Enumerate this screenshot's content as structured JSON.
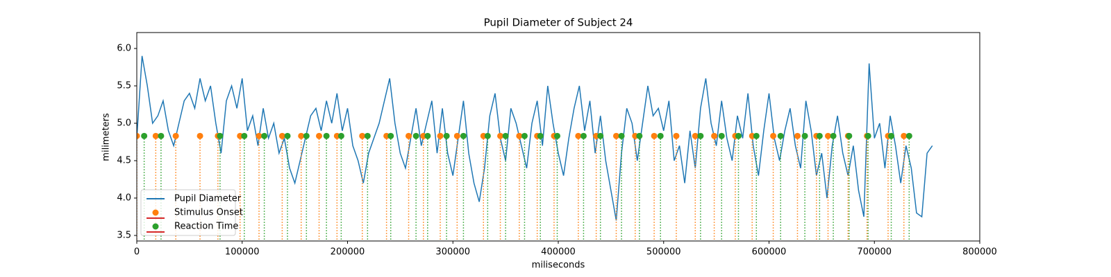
{
  "chart_data": {
    "type": "line",
    "title": "Pupil Diameter of Subject 24",
    "x_label": "miliseconds",
    "y_label": "milimeters",
    "xlim": [
      0,
      800000
    ],
    "xticks": [
      0,
      100000,
      200000,
      300000,
      400000,
      500000,
      600000,
      700000,
      800000
    ],
    "ylim": [
      3.426,
      6.213
    ],
    "yticks": [
      3.5,
      {
        "value": 4,
        "label": "4.0"
      },
      4.5,
      {
        "value": 5,
        "label": "5.0"
      },
      5.5,
      {
        "value": 6,
        "label": "6.0"
      }
    ],
    "legend": "lower left",
    "series": [
      {
        "name": "Pupil Diameter",
        "type": "line",
        "color": "#1f77b4",
        "x": [
          0,
          5000,
          10000,
          15000,
          20000,
          25000,
          30000,
          35000,
          40000,
          45000,
          50000,
          55000,
          60000,
          65000,
          70000,
          75000,
          80000,
          85000,
          90000,
          95000,
          100000,
          105000,
          110000,
          115000,
          120000,
          125000,
          130000,
          135000,
          140000,
          145000,
          150000,
          155000,
          160000,
          165000,
          170000,
          175000,
          180000,
          185000,
          190000,
          195000,
          200000,
          205000,
          210000,
          215000,
          220000,
          225000,
          230000,
          235000,
          240000,
          245000,
          250000,
          255000,
          260000,
          265000,
          270000,
          275000,
          280000,
          285000,
          290000,
          295000,
          300000,
          305000,
          310000,
          315000,
          320000,
          325000,
          330000,
          335000,
          340000,
          345000,
          350000,
          355000,
          360000,
          365000,
          370000,
          375000,
          380000,
          385000,
          390000,
          395000,
          400000,
          405000,
          410000,
          415000,
          420000,
          425000,
          430000,
          435000,
          440000,
          445000,
          450000,
          455000,
          460000,
          465000,
          470000,
          475000,
          480000,
          485000,
          490000,
          495000,
          500000,
          505000,
          510000,
          515000,
          520000,
          525000,
          530000,
          535000,
          540000,
          545000,
          550000,
          555000,
          560000,
          565000,
          570000,
          575000,
          580000,
          585000,
          590000,
          595000,
          600000,
          605000,
          610000,
          615000,
          620000,
          625000,
          630000,
          635000,
          640000,
          645000,
          650000,
          655000,
          660000,
          665000,
          670000,
          675000,
          680000,
          685000,
          690000,
          695000,
          700000,
          705000,
          710000,
          715000,
          720000,
          725000,
          730000,
          735000,
          740000,
          745000,
          750000,
          755000
        ],
        "values": [
          4.8,
          5.9,
          5.5,
          5.0,
          5.1,
          5.3,
          4.9,
          4.7,
          5.0,
          5.3,
          5.4,
          5.2,
          5.6,
          5.3,
          5.5,
          5.0,
          4.6,
          5.3,
          5.5,
          5.2,
          5.6,
          4.9,
          5.1,
          4.7,
          5.2,
          4.8,
          5.0,
          4.6,
          4.8,
          4.4,
          4.2,
          4.5,
          4.8,
          5.1,
          5.2,
          4.9,
          5.3,
          5.0,
          5.4,
          4.9,
          5.2,
          4.7,
          4.5,
          4.2,
          4.6,
          4.8,
          5.0,
          5.3,
          5.6,
          5.0,
          4.6,
          4.4,
          4.8,
          5.2,
          4.7,
          5.0,
          5.3,
          4.6,
          5.2,
          4.6,
          4.3,
          4.8,
          5.3,
          4.6,
          4.2,
          3.95,
          4.4,
          5.1,
          5.4,
          4.8,
          4.5,
          5.2,
          5.0,
          4.7,
          4.4,
          5.0,
          5.3,
          4.7,
          5.5,
          5.0,
          4.6,
          4.3,
          4.8,
          5.2,
          5.5,
          4.9,
          5.3,
          4.6,
          5.1,
          4.5,
          4.1,
          3.7,
          4.6,
          5.2,
          5.0,
          4.5,
          5.0,
          5.5,
          5.1,
          5.2,
          4.9,
          5.3,
          4.5,
          4.7,
          4.2,
          4.9,
          4.4,
          5.2,
          5.6,
          5.0,
          4.7,
          5.3,
          4.8,
          4.5,
          5.1,
          4.8,
          5.4,
          4.7,
          4.3,
          4.9,
          5.4,
          4.8,
          4.5,
          4.9,
          5.2,
          4.7,
          4.4,
          5.3,
          4.9,
          4.3,
          4.6,
          4.0,
          4.7,
          5.1,
          4.6,
          4.3,
          4.7,
          4.1,
          3.75,
          5.8,
          4.8,
          5.0,
          4.4,
          5.1,
          4.7,
          4.2,
          4.7,
          4.4,
          3.8,
          3.75,
          4.6,
          4.7
        ]
      },
      {
        "name": "Stimulus Onset",
        "type": "stem",
        "color": "#ff7f0e",
        "baseline_color": "#d62728",
        "x": [
          0,
          18000,
          37000,
          60000,
          77000,
          98000,
          116000,
          138000,
          156000,
          173000,
          190000,
          214000,
          237000,
          258000,
          272000,
          288000,
          304000,
          329000,
          345000,
          363000,
          380000,
          396000,
          419000,
          436000,
          455000,
          473000,
          491000,
          512000,
          530000,
          548000,
          568000,
          584000,
          604000,
          627000,
          645000,
          656000,
          675000,
          693000,
          713000,
          728000
        ],
        "values": [
          4.83,
          4.83,
          4.83,
          4.83,
          4.83,
          4.83,
          4.83,
          4.83,
          4.83,
          4.83,
          4.83,
          4.83,
          4.83,
          4.83,
          4.83,
          4.83,
          4.83,
          4.83,
          4.83,
          4.83,
          4.83,
          4.83,
          4.83,
          4.83,
          4.83,
          4.83,
          4.83,
          4.83,
          4.83,
          4.83,
          4.83,
          4.83,
          4.83,
          4.83,
          4.83,
          4.83,
          4.83,
          4.83,
          4.83,
          4.83
        ]
      },
      {
        "name": "Reaction Time",
        "type": "stem",
        "color": "#2ca02c",
        "baseline_color": "#d62728",
        "x": [
          7000,
          23000,
          79000,
          102000,
          121000,
          143000,
          161000,
          180000,
          194000,
          219000,
          241000,
          265000,
          276000,
          294000,
          310000,
          333000,
          350000,
          368000,
          383000,
          399000,
          424000,
          440000,
          460000,
          477000,
          497000,
          535000,
          555000,
          571000,
          588000,
          611000,
          634000,
          648000,
          661000,
          676000,
          694000,
          716000,
          733000
        ],
        "values": [
          4.83,
          4.83,
          4.83,
          4.83,
          4.83,
          4.83,
          4.83,
          4.83,
          4.83,
          4.83,
          4.83,
          4.83,
          4.83,
          4.83,
          4.83,
          4.83,
          4.83,
          4.83,
          4.83,
          4.83,
          4.83,
          4.83,
          4.83,
          4.83,
          4.83,
          4.83,
          4.83,
          4.83,
          4.83,
          4.83,
          4.83,
          4.83,
          4.83,
          4.83,
          4.83,
          4.83,
          4.83
        ]
      }
    ]
  }
}
